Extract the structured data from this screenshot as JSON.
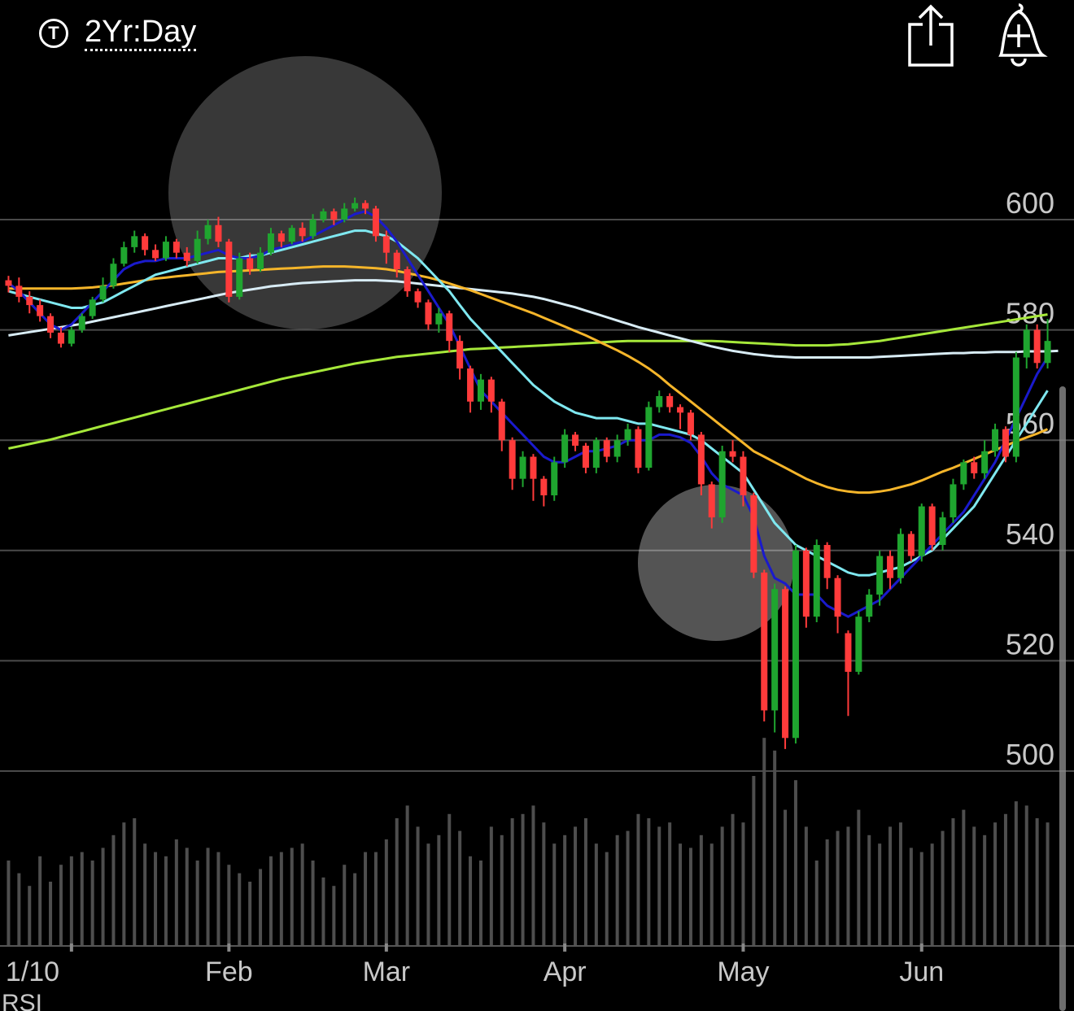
{
  "header": {
    "period_icon": "T",
    "period_label": "2Yr:Day",
    "share_icon": "share-icon",
    "alert_icon": "add-alert-bell-icon"
  },
  "footer": {
    "indicator_label": "RSI"
  },
  "colors": {
    "background": "#000000",
    "up": "#1fa52f",
    "down": "#ff3b3b",
    "gridline": "#4a4a4a",
    "axis_text": "#c8c8c8",
    "ma_blue": "#1a1acc",
    "ma_cyan": "#7fe8f0",
    "ma_orange": "#f5b52a",
    "ma_white": "#d8ecf5",
    "ma_green": "#a6e83a",
    "volume": "#4e4e4e"
  },
  "chart_data": {
    "type": "candlestick",
    "title": "",
    "ylim": [
      497,
      622
    ],
    "ytick_labels": [
      "600",
      "580",
      "560",
      "540",
      "520",
      "500"
    ],
    "yticks": [
      600,
      580,
      560,
      540,
      520,
      500
    ],
    "xtick_labels": [
      "1/10",
      "Feb",
      "Mar",
      "Apr",
      "May",
      "Jun"
    ],
    "xtick_positions": [
      6,
      21,
      36,
      53,
      70,
      87
    ],
    "grid": true,
    "candles": [
      [
        589,
        588,
        589.8,
        586.8
      ],
      [
        588,
        586,
        589.5,
        585
      ],
      [
        586,
        584.5,
        587,
        583
      ],
      [
        584.5,
        582.5,
        585.5,
        581.5
      ],
      [
        582.5,
        579.5,
        583,
        578.5
      ],
      [
        579.5,
        577.5,
        580.5,
        576.8
      ],
      [
        577.5,
        580,
        580.5,
        577
      ],
      [
        580,
        582.5,
        583,
        579.5
      ],
      [
        582.5,
        585.5,
        586,
        582
      ],
      [
        585.5,
        588,
        589.5,
        585
      ],
      [
        588,
        592,
        593,
        587.5
      ],
      [
        592,
        595,
        596,
        591.5
      ],
      [
        595,
        597,
        598,
        594
      ],
      [
        597,
        594.5,
        597.5,
        593.5
      ],
      [
        594.5,
        593,
        595.5,
        592.5
      ],
      [
        593,
        596,
        597,
        592.5
      ],
      [
        596,
        594,
        596.5,
        593
      ],
      [
        594,
        592.5,
        595,
        591.5
      ],
      [
        592.5,
        596.5,
        598,
        592
      ],
      [
        596.5,
        599,
        600,
        595.5
      ],
      [
        599,
        596,
        600.5,
        595
      ],
      [
        596,
        586,
        596.5,
        585
      ],
      [
        586,
        593,
        594,
        585.5
      ],
      [
        593,
        591,
        594,
        590
      ],
      [
        591,
        594,
        595,
        590.5
      ],
      [
        594,
        597.5,
        598.5,
        593.5
      ],
      [
        597.5,
        596,
        598,
        595
      ],
      [
        596,
        598.5,
        599,
        595.5
      ],
      [
        598.5,
        597,
        599.5,
        596
      ],
      [
        597,
        600,
        601,
        596.5
      ],
      [
        600,
        601.5,
        602,
        599.5
      ],
      [
        601.5,
        600,
        602,
        599
      ],
      [
        600,
        602,
        603,
        599.5
      ],
      [
        602,
        603,
        604,
        601.5
      ],
      [
        603,
        602,
        603.5,
        601
      ],
      [
        602,
        597,
        602.5,
        596
      ],
      [
        597,
        594,
        598,
        592
      ],
      [
        594,
        591,
        594.5,
        589.5
      ],
      [
        591,
        587,
        591.5,
        586
      ],
      [
        587,
        585,
        587.5,
        584
      ],
      [
        585,
        581,
        585.5,
        580
      ],
      [
        581,
        583,
        584,
        579.5
      ],
      [
        583,
        578,
        583.5,
        576
      ],
      [
        578,
        573,
        579,
        571
      ],
      [
        573,
        567,
        573.5,
        565
      ],
      [
        567,
        571,
        572,
        565.5
      ],
      [
        571,
        567,
        571.5,
        565
      ],
      [
        567,
        560,
        567.5,
        558
      ],
      [
        560,
        553,
        560.5,
        551
      ],
      [
        553,
        557,
        558,
        551.5
      ],
      [
        557,
        553,
        557.5,
        549
      ],
      [
        553,
        550,
        553.5,
        548
      ],
      [
        550,
        556,
        557,
        549
      ],
      [
        556,
        561,
        562,
        555
      ],
      [
        561,
        559,
        561.5,
        558
      ],
      [
        559,
        555,
        559.5,
        554
      ],
      [
        555,
        560,
        560.5,
        554
      ],
      [
        560,
        557,
        560.5,
        556
      ],
      [
        557,
        560,
        561,
        556
      ],
      [
        560,
        562,
        563,
        559
      ],
      [
        562,
        555,
        562.5,
        554
      ],
      [
        555,
        566,
        567,
        554.5
      ],
      [
        566,
        568,
        569,
        565
      ],
      [
        568,
        566,
        568.5,
        565
      ],
      [
        566,
        565,
        566.5,
        562
      ],
      [
        565,
        561,
        565.5,
        560
      ],
      [
        561,
        552,
        561.5,
        550
      ],
      [
        552,
        546,
        552.5,
        544
      ],
      [
        546,
        558,
        559,
        545
      ],
      [
        558,
        557,
        560,
        556
      ],
      [
        557,
        550,
        558,
        548
      ],
      [
        550,
        536,
        550.5,
        535
      ],
      [
        536,
        511,
        536.5,
        509
      ],
      [
        511,
        533,
        534,
        507
      ],
      [
        533,
        506,
        533.5,
        504
      ],
      [
        506,
        540,
        541,
        505
      ],
      [
        540,
        528,
        540.5,
        526
      ],
      [
        528,
        541,
        542,
        527
      ],
      [
        541,
        535,
        541.5,
        533
      ],
      [
        535,
        528,
        535.5,
        525
      ],
      [
        525,
        518,
        525.5,
        510
      ],
      [
        518,
        528,
        529,
        517.5
      ],
      [
        528,
        532,
        533,
        527
      ],
      [
        532,
        539,
        540,
        530
      ],
      [
        539,
        535,
        540,
        533
      ],
      [
        535,
        543,
        544,
        534
      ],
      [
        543,
        539,
        543.5,
        538
      ],
      [
        539,
        548,
        548.5,
        538
      ],
      [
        548,
        541,
        548.5,
        540
      ],
      [
        541,
        546,
        547,
        540
      ],
      [
        546,
        552,
        553,
        545
      ],
      [
        552,
        556,
        556.5,
        551
      ],
      [
        556,
        554,
        557,
        553
      ],
      [
        554,
        558,
        560,
        553
      ],
      [
        558,
        562,
        563,
        557
      ],
      [
        562,
        557,
        562.5,
        556
      ],
      [
        557,
        575,
        576,
        556
      ],
      [
        575,
        580,
        581,
        573
      ],
      [
        580,
        574,
        581,
        573
      ],
      [
        574,
        578,
        582,
        573
      ]
    ],
    "series": [
      {
        "name": "",
        "color": "#1a1acc",
        "values": [
          588.5,
          587,
          585,
          583,
          581,
          580,
          581,
          583,
          585,
          587,
          589,
          591,
          592,
          592.5,
          592.5,
          593,
          593,
          593,
          593.5,
          594,
          594.5,
          593.5,
          593,
          593,
          593.5,
          594.5,
          595,
          595.5,
          596,
          597,
          598,
          599,
          600,
          601,
          601.5,
          600.5,
          598.5,
          596,
          593,
          590,
          587,
          584,
          581,
          577,
          573,
          569,
          567,
          565,
          563,
          561,
          559,
          557,
          556,
          556,
          557,
          558,
          558,
          558.5,
          559,
          560,
          560,
          560,
          561,
          561,
          560.5,
          559.5,
          557,
          554,
          552,
          551,
          550,
          546,
          539,
          535,
          534,
          532,
          532,
          532,
          530,
          529,
          528,
          529,
          530,
          531,
          533,
          535,
          537,
          539,
          541,
          543,
          545,
          547,
          550,
          553,
          556,
          560,
          564,
          568,
          572,
          575
        ]
      },
      {
        "name": "",
        "color": "#7fe8f0",
        "values": [
          587,
          586.5,
          586,
          585.5,
          585,
          584.5,
          584,
          584,
          584.5,
          585,
          586,
          587,
          588,
          589,
          590,
          590.5,
          591,
          591.5,
          592,
          592.5,
          593,
          593,
          593,
          593.5,
          593.5,
          594,
          594.5,
          595,
          595.5,
          596,
          596.5,
          597,
          597.5,
          598,
          598,
          597.5,
          597,
          596,
          594.5,
          593,
          591,
          589,
          587,
          584.5,
          582,
          580,
          578,
          576,
          574,
          572,
          570,
          568.5,
          567,
          566,
          565,
          564.5,
          564,
          564,
          564,
          563.5,
          563,
          563,
          562.5,
          562,
          561.5,
          561,
          560,
          558.5,
          557,
          555.5,
          554,
          551,
          548,
          545,
          543,
          541,
          540,
          539,
          538,
          537,
          536,
          535.5,
          535.5,
          536,
          536.5,
          537,
          538,
          539,
          540,
          542,
          544,
          546,
          548,
          551,
          554,
          557,
          560,
          563,
          566,
          569
        ]
      },
      {
        "name": "",
        "color": "#f5b52a",
        "values": [
          587.5,
          587.5,
          587.5,
          587.5,
          587.5,
          587.5,
          587.5,
          587.6,
          587.7,
          587.9,
          588.1,
          588.4,
          588.7,
          589,
          589.3,
          589.5,
          589.7,
          589.9,
          590.1,
          590.3,
          590.5,
          590.6,
          590.7,
          590.8,
          590.9,
          591,
          591.1,
          591.2,
          591.3,
          591.4,
          591.5,
          591.5,
          591.5,
          591.4,
          591.3,
          591.2,
          591,
          590.7,
          590.3,
          589.9,
          589.5,
          589,
          588.4,
          587.8,
          587.2,
          586.5,
          585.8,
          585.1,
          584.4,
          583.7,
          583,
          582.2,
          581.4,
          580.6,
          579.8,
          579,
          578.1,
          577.2,
          576.3,
          575.3,
          574.2,
          573,
          571.6,
          570,
          568.5,
          567,
          565.5,
          564,
          562.5,
          561,
          559.5,
          558,
          557,
          556,
          555,
          554,
          553,
          552.2,
          551.5,
          551,
          550.7,
          550.5,
          550.5,
          550.7,
          551,
          551.5,
          552,
          552.7,
          553.5,
          554.3,
          555,
          555.8,
          556.6,
          557.4,
          558.2,
          559,
          559.8,
          560.5,
          561.2,
          562
        ]
      },
      {
        "name": "",
        "color": "#d8ecf5",
        "values": [
          579,
          579.3,
          579.6,
          579.9,
          580.2,
          580.5,
          580.8,
          581.1,
          581.5,
          581.9,
          582.3,
          582.7,
          583.1,
          583.5,
          583.9,
          584.3,
          584.7,
          585.1,
          585.5,
          585.9,
          586.3,
          586.7,
          587,
          587.3,
          587.6,
          587.9,
          588.1,
          588.3,
          588.5,
          588.6,
          588.7,
          588.8,
          588.9,
          589,
          589,
          589,
          588.9,
          588.8,
          588.6,
          588.4,
          588.2,
          588,
          587.8,
          587.6,
          587.4,
          587.2,
          587,
          586.8,
          586.6,
          586.3,
          586,
          585.6,
          585.1,
          584.6,
          584.1,
          583.5,
          582.9,
          582.3,
          581.7,
          581.1,
          580.5,
          580,
          579.5,
          579,
          578.5,
          578,
          577.5,
          577,
          576.6,
          576.2,
          575.9,
          575.6,
          575.4,
          575.2,
          575.1,
          575,
          575,
          575,
          575,
          575,
          575,
          575,
          575,
          575.1,
          575.2,
          575.3,
          575.4,
          575.5,
          575.6,
          575.7,
          575.8,
          575.8,
          575.9,
          575.9,
          576,
          576,
          576,
          576.1,
          576.1,
          576.1,
          576.2
        ]
      },
      {
        "name": "",
        "color": "#a6e83a",
        "values": [
          558.5,
          558.9,
          559.3,
          559.7,
          560.1,
          560.6,
          561.1,
          561.6,
          562.1,
          562.6,
          563.1,
          563.6,
          564.1,
          564.6,
          565.1,
          565.6,
          566.1,
          566.6,
          567.1,
          567.6,
          568.1,
          568.6,
          569.1,
          569.6,
          570.1,
          570.6,
          571.1,
          571.5,
          571.9,
          572.3,
          572.7,
          573.1,
          573.5,
          573.9,
          574.2,
          574.5,
          574.8,
          575.1,
          575.3,
          575.5,
          575.7,
          575.9,
          576.1,
          576.3,
          576.5,
          576.6,
          576.7,
          576.8,
          576.9,
          577,
          577.1,
          577.2,
          577.3,
          577.4,
          577.5,
          577.6,
          577.7,
          577.8,
          577.9,
          578,
          578,
          578,
          578,
          578,
          578,
          578,
          578,
          578,
          577.9,
          577.8,
          577.7,
          577.6,
          577.5,
          577.4,
          577.3,
          577.2,
          577.2,
          577.2,
          577.2,
          577.3,
          577.4,
          577.6,
          577.8,
          578,
          578.3,
          578.6,
          578.9,
          579.2,
          579.5,
          579.8,
          580.1,
          580.4,
          580.7,
          581,
          581.3,
          581.6,
          581.9,
          582.2,
          582.5,
          582.8
        ]
      }
    ],
    "volume": [
      40,
      34,
      28,
      42,
      30,
      38,
      42,
      44,
      40,
      46,
      52,
      58,
      60,
      48,
      44,
      42,
      50,
      46,
      40,
      46,
      44,
      38,
      34,
      30,
      36,
      42,
      44,
      46,
      48,
      40,
      32,
      28,
      38,
      34,
      44,
      44,
      50,
      60,
      66,
      56,
      48,
      52,
      62,
      54,
      42,
      40,
      56,
      52,
      60,
      62,
      66,
      58,
      48,
      52,
      56,
      60,
      48,
      44,
      52,
      54,
      62,
      60,
      56,
      58,
      48,
      46,
      52,
      48,
      56,
      62,
      58,
      80,
      98,
      92,
      64,
      78,
      56,
      40,
      50,
      54,
      56,
      64,
      52,
      48,
      56,
      58,
      46,
      44,
      48,
      54,
      60,
      64,
      56,
      52,
      58,
      62,
      68,
      66,
      60,
      58
    ]
  }
}
